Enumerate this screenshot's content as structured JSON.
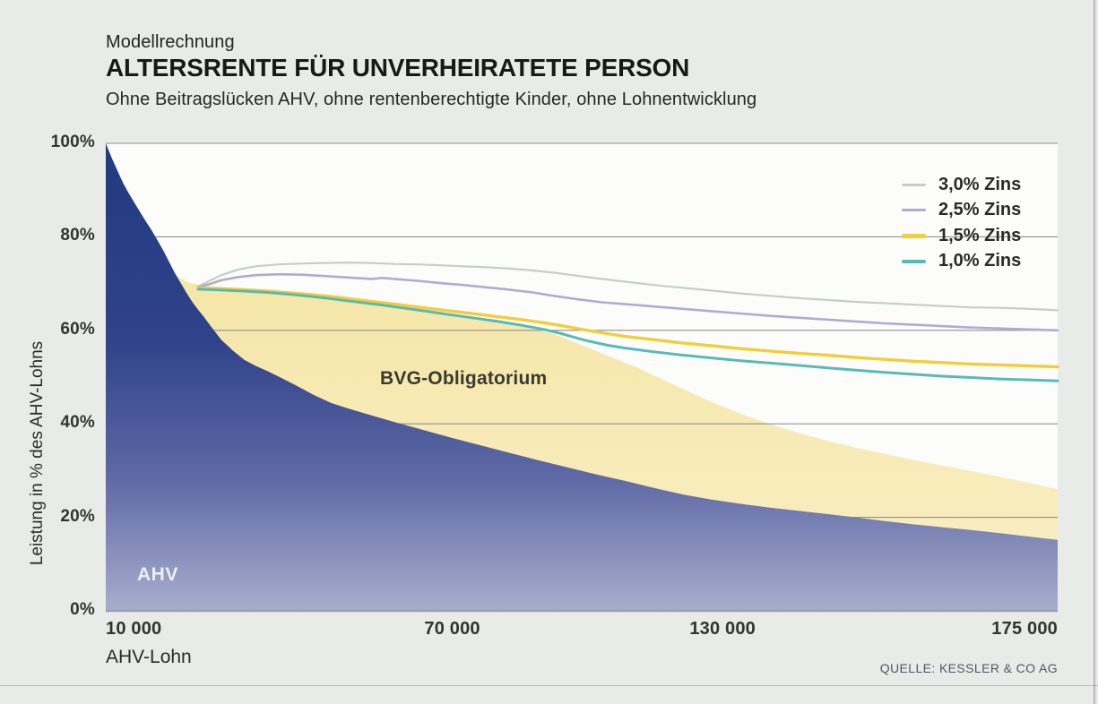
{
  "chart_data": {
    "type": "area",
    "kicker": "Modellrechnung",
    "title": "ALTERSRENTE FÜR UNVERHEIRATETE PERSON",
    "subtitle": "Ohne Beitragslücken AHV, ohne rentenberechtigte Kinder, ohne Lohnentwicklung",
    "xlabel": "AHV-Lohn",
    "ylabel": "Leistung in % des AHV-Lohns",
    "source": "QUELLE: KESSLER & CO AG",
    "grid": true,
    "legend_position": "top-right",
    "x_domain": [
      10000,
      175000
    ],
    "y_domain": [
      0,
      100
    ],
    "x_ticks": [
      {
        "label": "10 000",
        "value": 10000,
        "frac": 0.0,
        "align": "left"
      },
      {
        "label": "70 000",
        "value": 70000,
        "frac": 0.364,
        "align": "center"
      },
      {
        "label": "130 000",
        "value": 130000,
        "frac": 0.648,
        "align": "center"
      },
      {
        "label": "175 000",
        "value": 175000,
        "frac": 1.0,
        "align": "right"
      }
    ],
    "y_ticks": [
      {
        "label": "100%",
        "value": 100
      },
      {
        "label": "80%",
        "value": 80
      },
      {
        "label": "60%",
        "value": 60
      },
      {
        "label": "40%",
        "value": 40
      },
      {
        "label": "20%",
        "value": 20
      },
      {
        "label": "0%",
        "value": 0
      }
    ],
    "colors": {
      "page_bg": "#e9ebe9",
      "plot_bg": "#fcfdfb",
      "grid": "#8e908f",
      "baseline": "#99a0b4",
      "ahv_gradient_top": "#213a80",
      "ahv_gradient_bottom": "#a9aecd",
      "bvg_gradient_top": "#f5e5a2",
      "bvg_gradient_bottom": "#f9efc7"
    },
    "areas": [
      {
        "id": "ahv",
        "label": "AHV",
        "points": [
          [
            10000,
            100
          ],
          [
            11000,
            97
          ],
          [
            12000,
            94.2
          ],
          [
            13000,
            91.5
          ],
          [
            14000,
            89.3
          ],
          [
            15000,
            87.2
          ],
          [
            16000,
            85.2
          ],
          [
            17000,
            83.2
          ],
          [
            18000,
            81.3
          ],
          [
            19000,
            79.2
          ],
          [
            20000,
            77
          ],
          [
            21000,
            74.6
          ],
          [
            22000,
            72.2
          ],
          [
            23000,
            70.1
          ],
          [
            24000,
            68
          ],
          [
            25000,
            66.1
          ],
          [
            26000,
            64.4
          ],
          [
            27000,
            62.9
          ],
          [
            28000,
            61.2
          ],
          [
            29000,
            59.6
          ],
          [
            30000,
            58
          ],
          [
            32000,
            55.7
          ],
          [
            34000,
            53.7
          ],
          [
            36000,
            52.4
          ],
          [
            38000,
            51.3
          ],
          [
            40000,
            50.1
          ],
          [
            43000,
            48.2
          ],
          [
            46000,
            46.2
          ],
          [
            49000,
            44.5
          ],
          [
            52000,
            43.3
          ],
          [
            55000,
            42.2
          ],
          [
            60000,
            40.4
          ],
          [
            65000,
            38.7
          ],
          [
            70000,
            37
          ],
          [
            75000,
            35.4
          ],
          [
            80000,
            33.8
          ],
          [
            85000,
            32.2
          ],
          [
            90000,
            30.7
          ],
          [
            95000,
            29.2
          ],
          [
            100000,
            27.8
          ],
          [
            105000,
            26.3
          ],
          [
            110000,
            24.9
          ],
          [
            115000,
            23.8
          ],
          [
            120000,
            22.9
          ],
          [
            125000,
            22.1
          ],
          [
            130000,
            21.4
          ],
          [
            135000,
            20.7
          ],
          [
            140000,
            20
          ],
          [
            145000,
            19.2
          ],
          [
            150000,
            18.5
          ],
          [
            155000,
            17.9
          ],
          [
            160000,
            17.3
          ],
          [
            165000,
            16.6
          ],
          [
            170000,
            15.9
          ],
          [
            175000,
            15.2
          ]
        ]
      },
      {
        "id": "bvg",
        "label": "BVG-Obligatorium",
        "points": [
          [
            19000,
            79
          ],
          [
            19500,
            76.5
          ],
          [
            20000,
            75
          ],
          [
            21000,
            73.2
          ],
          [
            22000,
            72
          ],
          [
            23000,
            71.1
          ],
          [
            24000,
            70.4
          ],
          [
            25000,
            70
          ],
          [
            26000,
            69.8
          ],
          [
            27000,
            69.6
          ],
          [
            28000,
            69.5
          ],
          [
            30000,
            69.3
          ],
          [
            33000,
            69.1
          ],
          [
            36000,
            68.8
          ],
          [
            40000,
            68.4
          ],
          [
            44000,
            67.9
          ],
          [
            48000,
            67.4
          ],
          [
            52000,
            66.9
          ],
          [
            56000,
            66.3
          ],
          [
            60000,
            65.6
          ],
          [
            64000,
            64.8
          ],
          [
            68000,
            63.9
          ],
          [
            72000,
            63
          ],
          [
            76000,
            62.1
          ],
          [
            80000,
            61.2
          ],
          [
            84000,
            60.3
          ],
          [
            87000,
            59.5
          ],
          [
            90000,
            58.1
          ],
          [
            94000,
            56.1
          ],
          [
            98000,
            54.1
          ],
          [
            102000,
            52.1
          ],
          [
            106000,
            49.8
          ],
          [
            110000,
            47.5
          ],
          [
            115000,
            44.7
          ],
          [
            120000,
            42.2
          ],
          [
            125000,
            40
          ],
          [
            130000,
            38.1
          ],
          [
            135000,
            36.4
          ],
          [
            140000,
            34.9
          ],
          [
            145000,
            33.6
          ],
          [
            150000,
            32.3
          ],
          [
            155000,
            31.1
          ],
          [
            160000,
            29.9
          ],
          [
            165000,
            28.7
          ],
          [
            170000,
            27.4
          ],
          [
            175000,
            26
          ]
        ]
      }
    ],
    "series": [
      {
        "name": "3,0% Zins",
        "color": "#c3cfc6",
        "width": 2.2,
        "swatch_h": 3,
        "points": [
          [
            26000,
            69.4
          ],
          [
            28000,
            70.6
          ],
          [
            30000,
            71.8
          ],
          [
            33000,
            73
          ],
          [
            36000,
            73.7
          ],
          [
            40000,
            74.1
          ],
          [
            44000,
            74.3
          ],
          [
            48000,
            74.4
          ],
          [
            52000,
            74.5
          ],
          [
            56000,
            74.4
          ],
          [
            60000,
            74.2
          ],
          [
            64000,
            74.1
          ],
          [
            68000,
            73.9
          ],
          [
            72000,
            73.7
          ],
          [
            76000,
            73.5
          ],
          [
            80000,
            73.2
          ],
          [
            84000,
            72.8
          ],
          [
            88000,
            72.3
          ],
          [
            92000,
            71.6
          ],
          [
            96000,
            71
          ],
          [
            100000,
            70.4
          ],
          [
            105000,
            69.7
          ],
          [
            110000,
            69.1
          ],
          [
            115000,
            68.5
          ],
          [
            120000,
            67.9
          ],
          [
            125000,
            67.4
          ],
          [
            130000,
            66.9
          ],
          [
            135000,
            66.5
          ],
          [
            140000,
            66.1
          ],
          [
            145000,
            65.8
          ],
          [
            150000,
            65.5
          ],
          [
            155000,
            65.2
          ],
          [
            160000,
            64.9
          ],
          [
            165000,
            64.8
          ],
          [
            170000,
            64.6
          ],
          [
            175000,
            64.3
          ]
        ]
      },
      {
        "name": "2,5% Zins",
        "color": "#b1abce",
        "width": 2.6,
        "swatch_h": 3,
        "points": [
          [
            26000,
            69.2
          ],
          [
            28000,
            69.9
          ],
          [
            30000,
            70.7
          ],
          [
            33000,
            71.4
          ],
          [
            36000,
            71.8
          ],
          [
            40000,
            72
          ],
          [
            44000,
            71.9
          ],
          [
            48000,
            71.6
          ],
          [
            52000,
            71.3
          ],
          [
            56000,
            71
          ],
          [
            58000,
            71.2
          ],
          [
            60000,
            71
          ],
          [
            64000,
            70.6
          ],
          [
            68000,
            70.1
          ],
          [
            72000,
            69.7
          ],
          [
            76000,
            69.2
          ],
          [
            80000,
            68.7
          ],
          [
            84000,
            68.1
          ],
          [
            88000,
            67.3
          ],
          [
            92000,
            66.6
          ],
          [
            96000,
            66
          ],
          [
            100000,
            65.6
          ],
          [
            105000,
            65.1
          ],
          [
            110000,
            64.6
          ],
          [
            115000,
            64.1
          ],
          [
            120000,
            63.6
          ],
          [
            125000,
            63.1
          ],
          [
            130000,
            62.7
          ],
          [
            135000,
            62.3
          ],
          [
            140000,
            61.9
          ],
          [
            145000,
            61.5
          ],
          [
            150000,
            61.2
          ],
          [
            155000,
            60.9
          ],
          [
            160000,
            60.6
          ],
          [
            165000,
            60.4
          ],
          [
            170000,
            60.2
          ],
          [
            175000,
            60
          ]
        ]
      },
      {
        "name": "1,5% Zins",
        "color": "#f2ce39",
        "width": 3.4,
        "swatch_h": 5,
        "points": [
          [
            26000,
            69
          ],
          [
            30000,
            68.9
          ],
          [
            34000,
            68.7
          ],
          [
            38000,
            68.4
          ],
          [
            42000,
            68
          ],
          [
            46000,
            67.6
          ],
          [
            50000,
            67.1
          ],
          [
            54000,
            66.5
          ],
          [
            58000,
            65.9
          ],
          [
            62000,
            65.3
          ],
          [
            66000,
            64.7
          ],
          [
            70000,
            64.1
          ],
          [
            74000,
            63.5
          ],
          [
            78000,
            62.9
          ],
          [
            82000,
            62.3
          ],
          [
            86000,
            61.6
          ],
          [
            89000,
            61
          ],
          [
            93000,
            60.1
          ],
          [
            97000,
            59.3
          ],
          [
            100000,
            58.7
          ],
          [
            105000,
            58
          ],
          [
            110000,
            57.3
          ],
          [
            115000,
            56.7
          ],
          [
            120000,
            56.1
          ],
          [
            125000,
            55.6
          ],
          [
            130000,
            55.1
          ],
          [
            135000,
            54.7
          ],
          [
            140000,
            54.2
          ],
          [
            145000,
            53.8
          ],
          [
            150000,
            53.4
          ],
          [
            155000,
            53.1
          ],
          [
            160000,
            52.8
          ],
          [
            165000,
            52.6
          ],
          [
            170000,
            52.4
          ],
          [
            175000,
            52.2
          ]
        ]
      },
      {
        "name": "1,0% Zins",
        "color": "#58bab6",
        "width": 3.0,
        "swatch_h": 4,
        "points": [
          [
            26000,
            68.8
          ],
          [
            30000,
            68.6
          ],
          [
            34000,
            68.4
          ],
          [
            38000,
            68.1
          ],
          [
            42000,
            67.7
          ],
          [
            46000,
            67.2
          ],
          [
            50000,
            66.6
          ],
          [
            54000,
            66
          ],
          [
            58000,
            65.4
          ],
          [
            62000,
            64.7
          ],
          [
            66000,
            64
          ],
          [
            70000,
            63.3
          ],
          [
            74000,
            62.6
          ],
          [
            78000,
            61.9
          ],
          [
            82000,
            61.1
          ],
          [
            86000,
            60.2
          ],
          [
            89000,
            59.3
          ],
          [
            93000,
            57.9
          ],
          [
            97000,
            56.8
          ],
          [
            100000,
            56.2
          ],
          [
            105000,
            55.4
          ],
          [
            110000,
            54.7
          ],
          [
            115000,
            54.1
          ],
          [
            120000,
            53.5
          ],
          [
            125000,
            53
          ],
          [
            130000,
            52.5
          ],
          [
            135000,
            52
          ],
          [
            140000,
            51.5
          ],
          [
            145000,
            51
          ],
          [
            150000,
            50.6
          ],
          [
            155000,
            50.2
          ],
          [
            160000,
            49.9
          ],
          [
            165000,
            49.6
          ],
          [
            170000,
            49.4
          ],
          [
            175000,
            49.2
          ]
        ]
      }
    ]
  }
}
